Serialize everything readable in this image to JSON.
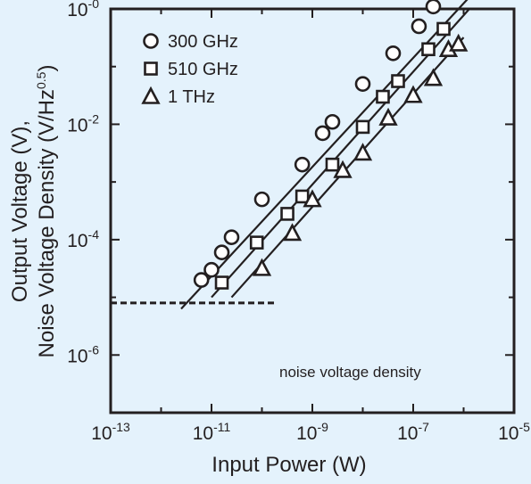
{
  "chart_data": {
    "type": "scatter",
    "xlabel": "Input Power (W)",
    "ylabel_lines": [
      "Output Voltage (V),",
      "Noise Voltage Density (V/Hz"
    ],
    "ylabel_sup": "0.5",
    "ylabel_close": ")",
    "xscale": "log",
    "yscale": "log",
    "xlim": [
      1e-13,
      1e-05
    ],
    "ylim": [
      1e-07,
      1
    ],
    "x_ticks": [
      {
        "base": "10",
        "exp": "-13",
        "value": 1e-13
      },
      {
        "base": "10",
        "exp": "-11",
        "value": 1e-11
      },
      {
        "base": "10",
        "exp": "-9",
        "value": 1e-09
      },
      {
        "base": "10",
        "exp": "-7",
        "value": 1e-07
      },
      {
        "base": "10",
        "exp": "-5",
        "value": 1e-05
      }
    ],
    "y_ticks": [
      {
        "base": "10",
        "exp": "-6",
        "value": 1e-06
      },
      {
        "base": "10",
        "exp": "-4",
        "value": 0.0001
      },
      {
        "base": "10",
        "exp": "-2",
        "value": 0.01
      },
      {
        "base": "10",
        "exp": "-0",
        "value": 1
      }
    ],
    "grid": false,
    "legend_placement": "top-left",
    "series": [
      {
        "name": "300 GHz",
        "marker": "circle",
        "x": [
          6.3e-12,
          1e-11,
          1.6e-11,
          2.5e-11,
          1e-10,
          6.3e-10,
          1.6e-09,
          2.5e-09,
          1e-08,
          4e-08,
          1.3e-07,
          2.5e-07
        ],
        "y": [
          2e-05,
          3e-05,
          6e-05,
          0.00011,
          0.0005,
          0.002,
          0.007,
          0.011,
          0.05,
          0.17,
          0.5,
          1.1
        ],
        "fit_line": {
          "x": [
            2.5e-12,
            1.3e-06
          ],
          "y": [
            6.3e-06,
            1.6
          ]
        }
      },
      {
        "name": "510 GHz",
        "marker": "square",
        "x": [
          1.6e-11,
          7.9e-11,
          3.2e-10,
          6.3e-10,
          2.5e-09,
          1e-08,
          2.5e-08,
          5e-08,
          2e-07,
          4e-07
        ],
        "y": [
          1.8e-05,
          8.9e-05,
          0.00028,
          0.00056,
          0.002,
          0.009,
          0.03,
          0.056,
          0.2,
          0.45
        ],
        "fit_line": {
          "x": [
            1e-11,
            1.3e-06
          ],
          "y": [
            1e-05,
            1.0
          ]
        }
      },
      {
        "name": "1 THz",
        "marker": "triangle",
        "x": [
          1e-10,
          4e-10,
          1e-09,
          4e-09,
          1e-08,
          3.2e-08,
          1e-07,
          2.5e-07,
          5e-07,
          7.9e-07
        ],
        "y": [
          3.2e-05,
          0.00013,
          0.0005,
          0.0016,
          0.0032,
          0.013,
          0.032,
          0.063,
          0.2,
          0.25
        ],
        "fit_line": {
          "x": [
            2.5e-11,
            1e-06
          ],
          "y": [
            1e-05,
            0.32
          ]
        }
      }
    ],
    "noise_floor": {
      "x": [
        1e-13,
        2e-10
      ],
      "y": 8e-06
    },
    "annotation": "noise voltage density"
  }
}
